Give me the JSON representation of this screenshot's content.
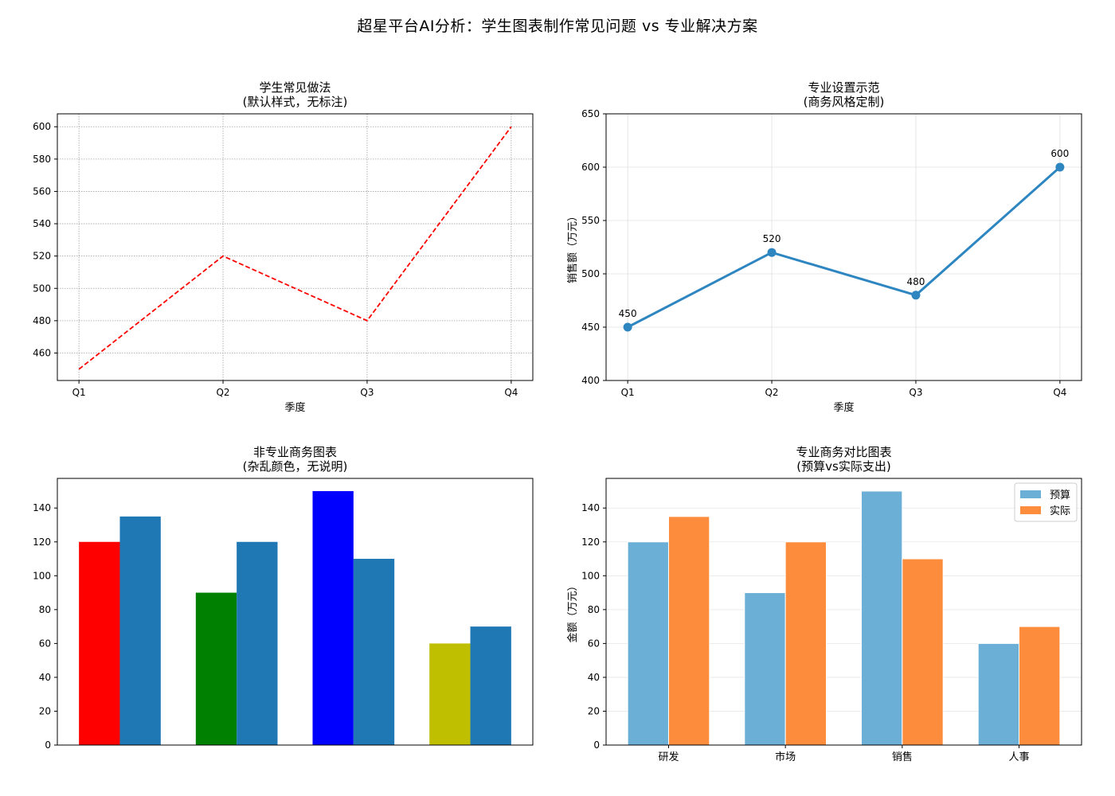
{
  "figure": {
    "suptitle": "超星平台AI分析：学生图表制作常见问题 vs 专业解决方案"
  },
  "chart_data": [
    {
      "id": "tl",
      "type": "line",
      "title": "学生常见做法",
      "subtitle": "(默认样式，无标注)",
      "xlabel": "季度",
      "ylabel": "",
      "categories": [
        "Q1",
        "Q2",
        "Q3",
        "Q4"
      ],
      "series": [
        {
          "values": [
            450,
            520,
            480,
            600
          ],
          "color": "#ff0000",
          "style": "dashed"
        }
      ],
      "ylim": [
        443,
        608
      ],
      "yticks": [
        460,
        480,
        500,
        520,
        540,
        560,
        580,
        600
      ],
      "grid": "dotted",
      "markers": false,
      "data_labels": false
    },
    {
      "id": "tr",
      "type": "line",
      "title": "专业设置示范",
      "subtitle": "(商务风格定制)",
      "xlabel": "季度",
      "ylabel": "销售额（万元）",
      "categories": [
        "Q1",
        "Q2",
        "Q3",
        "Q4"
      ],
      "series": [
        {
          "values": [
            450,
            520,
            480,
            600
          ],
          "color": "#2e86c1",
          "style": "solid"
        }
      ],
      "ylim": [
        400,
        650
      ],
      "yticks": [
        400,
        450,
        500,
        550,
        600,
        650
      ],
      "grid": "solid",
      "markers": true,
      "data_labels": true,
      "data_label_texts": [
        "450",
        "520",
        "480",
        "600"
      ]
    },
    {
      "id": "bl",
      "type": "bar",
      "title": "非专业商务图表",
      "subtitle": "(杂乱颜色，无说明)",
      "xlabel": "",
      "ylabel": "",
      "categories": [
        "",
        "",
        "",
        ""
      ],
      "series": [
        {
          "values": [
            120,
            90,
            150,
            60
          ],
          "colors": [
            "#ff0000",
            "#008000",
            "#0000ff",
            "#bfbf00"
          ]
        },
        {
          "values": [
            135,
            120,
            110,
            70
          ],
          "colors": [
            "#1f77b4",
            "#1f77b4",
            "#1f77b4",
            "#1f77b4"
          ]
        }
      ],
      "ylim": [
        0,
        157.5
      ],
      "yticks": [
        0,
        20,
        40,
        60,
        80,
        100,
        120,
        140
      ],
      "grid": "none",
      "legend": false
    },
    {
      "id": "br",
      "type": "bar",
      "title": "专业商务对比图表",
      "subtitle": "(预算vs实际支出)",
      "xlabel": "",
      "ylabel": "金额（万元）",
      "categories": [
        "研发",
        "市场",
        "销售",
        "人事"
      ],
      "series": [
        {
          "name": "预算",
          "values": [
            120,
            90,
            150,
            60
          ],
          "color": "#6baed6"
        },
        {
          "name": "实际",
          "values": [
            135,
            120,
            110,
            70
          ],
          "color": "#fd8d3c"
        }
      ],
      "ylim": [
        0,
        157.5
      ],
      "yticks": [
        0,
        20,
        40,
        60,
        80,
        100,
        120,
        140
      ],
      "grid": "y",
      "legend": true,
      "legend_position": "top-right"
    }
  ]
}
